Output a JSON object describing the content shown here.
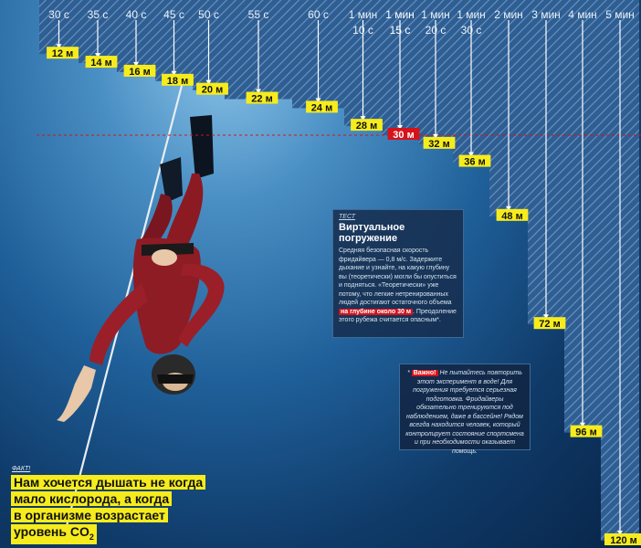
{
  "chart_data": {
    "type": "bar",
    "categories": [
      "30 с",
      "35 с",
      "40 с",
      "45 с",
      "50 с",
      "55 с",
      "60 с",
      "1 мин 10 с",
      "1 мин 15 с",
      "1 мин 20 с",
      "1 мин 30 с",
      "2 мин",
      "3 мин",
      "4 мин",
      "5 мин"
    ],
    "values": [
      12,
      14,
      16,
      18,
      20,
      22,
      24,
      28,
      30,
      32,
      36,
      48,
      72,
      96,
      120
    ],
    "value_labels": [
      "12 м",
      "14 м",
      "16 м",
      "18 м",
      "20 м",
      "22 м",
      "24 м",
      "28 м",
      "30 м",
      "32 м",
      "36 м",
      "48 м",
      "72 м",
      "96 м",
      "120 м"
    ],
    "highlight_category": "1 мин 15 с",
    "ylim": [
      0,
      120
    ],
    "y_inverted": true,
    "threshold_depth": 30,
    "colors": {
      "bar_hatch": "#2f5e93",
      "label_bg": "#f6ec1d",
      "highlight_label_bg": "#d6121a",
      "threshold_line": "#d6121a"
    }
  },
  "test_box": {
    "tag": "ТЕСТ",
    "title": "Виртуальное погружение",
    "body_1": "Средняя безопасная скорость фридайвера — 0,8 м/с. Задержите дыхание и узнайте, на какую глубину вы (теоретически) могли бы опуститься и подняться. «Теоретически» уже потому, что легкие нетренированных людей достигают остаточного объема",
    "highlight": "на глубине около 30 м",
    "body_2": ". Преодоление этого рубежа считается опасным*."
  },
  "warning_box": {
    "prefix": "*",
    "highlight": "Важно!",
    "text": "Не пытайтесь повторить этот эксперимент в воде! Для погружения требуется серьезная подготовка. Фридайверы обязательно тренируются под наблюдением, даже в бассейне! Рядом всегда находится человек, который контролирует состояние спортсмена и при необходимости оказывает помощь."
  },
  "fact": {
    "tag": "ФАКТ!",
    "line_1": "Нам хочется дышать не когда",
    "line_2": "мало кислорода, а когда",
    "line_3": "в организме возрастает",
    "line_4": "уровень CO",
    "line_4_sub": "2"
  }
}
